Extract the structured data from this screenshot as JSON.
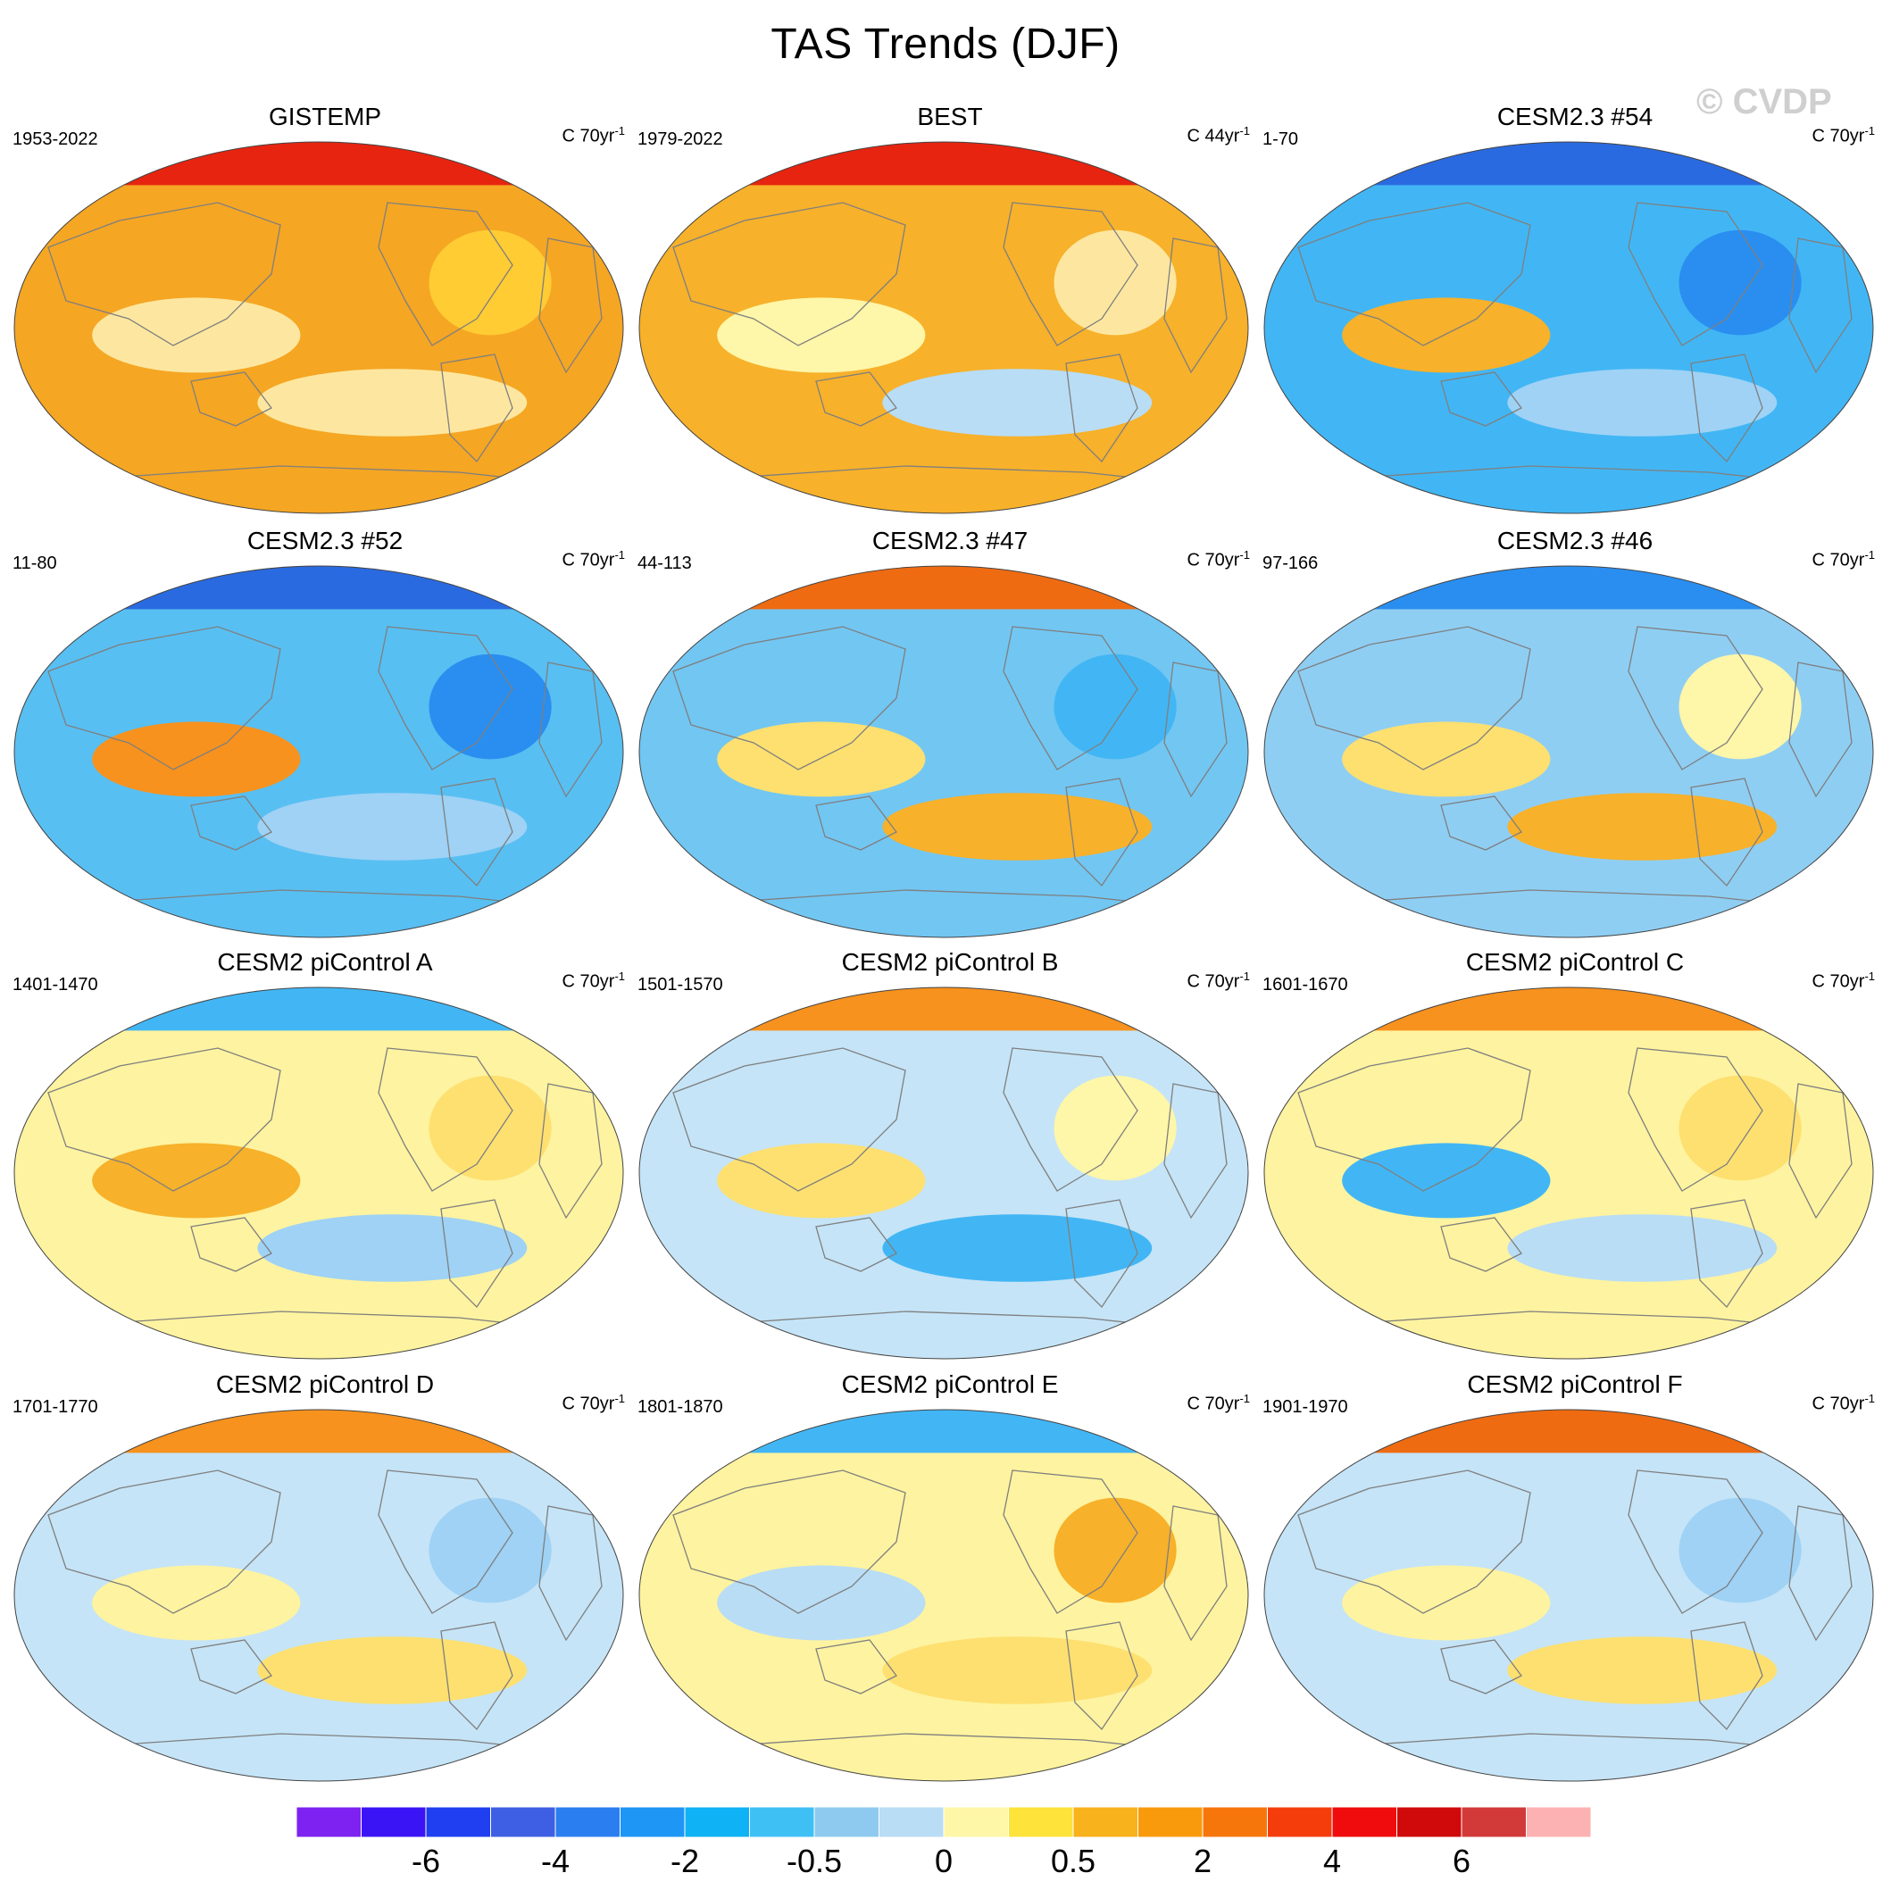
{
  "title": "TAS Trends (DJF)",
  "watermark": "© CVDP",
  "panels": [
    {
      "title": "GISTEMP",
      "period": "1953-2022",
      "units_prefix": "C 70yr",
      "units_exp": "-1",
      "base": "#f5a623",
      "north": "#e62410",
      "blobs": [
        {
          "c": "#fde7a0"
        },
        {
          "c": "#fde7a0"
        },
        {
          "c": "#ffcc33"
        }
      ]
    },
    {
      "title": "BEST",
      "period": "1979-2022",
      "units_prefix": "C 44yr",
      "units_exp": "-1",
      "base": "#f7b12a",
      "north": "#e62410",
      "blobs": [
        {
          "c": "#fef6a8"
        },
        {
          "c": "#b9ddf5"
        },
        {
          "c": "#fde7a0"
        }
      ]
    },
    {
      "title": "CESM2.3 #54",
      "period": "1-70",
      "units_prefix": "C 70yr",
      "units_exp": "-1",
      "base": "#42b6f4",
      "north": "#2a6ae0",
      "blobs": [
        {
          "c": "#f7b12a"
        },
        {
          "c": "#9fd2f5"
        },
        {
          "c": "#2a8ef0"
        }
      ]
    },
    {
      "title": "CESM2.3 #52",
      "period": "11-80",
      "units_prefix": "C 70yr",
      "units_exp": "-1",
      "base": "#58bff2",
      "north": "#2a6ae0",
      "blobs": [
        {
          "c": "#f7921e"
        },
        {
          "c": "#9fd2f5"
        },
        {
          "c": "#2a8ef0"
        }
      ]
    },
    {
      "title": "CESM2.3 #47",
      "period": "44-113",
      "units_prefix": "C 70yr",
      "units_exp": "-1",
      "base": "#72c6f2",
      "north": "#ef6b12",
      "blobs": [
        {
          "c": "#fde070"
        },
        {
          "c": "#f7b12a"
        },
        {
          "c": "#42b6f4"
        }
      ]
    },
    {
      "title": "CESM2.3 #46",
      "period": "97-166",
      "units_prefix": "C 70yr",
      "units_exp": "-1",
      "base": "#8fcef3",
      "north": "#2a8ef0",
      "blobs": [
        {
          "c": "#fde070"
        },
        {
          "c": "#f7b12a"
        },
        {
          "c": "#fef6a8"
        }
      ]
    },
    {
      "title": "CESM2 piControl A",
      "period": "1401-1470",
      "units_prefix": "C 70yr",
      "units_exp": "-1",
      "base": "#fef3a0",
      "north": "#42b6f4",
      "blobs": [
        {
          "c": "#f7b12a"
        },
        {
          "c": "#9fd2f5"
        },
        {
          "c": "#fde070"
        }
      ]
    },
    {
      "title": "CESM2 piControl B",
      "period": "1501-1570",
      "units_prefix": "C 70yr",
      "units_exp": "-1",
      "base": "#c5e4f7",
      "north": "#f7921e",
      "blobs": [
        {
          "c": "#fde070"
        },
        {
          "c": "#42b6f4"
        },
        {
          "c": "#fef6a8"
        }
      ]
    },
    {
      "title": "CESM2 piControl C",
      "period": "1601-1670",
      "units_prefix": "C 70yr",
      "units_exp": "-1",
      "base": "#fef3a0",
      "north": "#f7921e",
      "blobs": [
        {
          "c": "#42b6f4"
        },
        {
          "c": "#b9ddf5"
        },
        {
          "c": "#fde070"
        }
      ]
    },
    {
      "title": "CESM2 piControl D",
      "period": "1701-1770",
      "units_prefix": "C 70yr",
      "units_exp": "-1",
      "base": "#c5e4f7",
      "north": "#f7921e",
      "blobs": [
        {
          "c": "#fef3a0"
        },
        {
          "c": "#fde070"
        },
        {
          "c": "#9fd2f5"
        }
      ]
    },
    {
      "title": "CESM2 piControl E",
      "period": "1801-1870",
      "units_prefix": "C 70yr",
      "units_exp": "-1",
      "base": "#fef3a0",
      "north": "#42b6f4",
      "blobs": [
        {
          "c": "#b9ddf5"
        },
        {
          "c": "#fde070"
        },
        {
          "c": "#f7b12a"
        }
      ]
    },
    {
      "title": "CESM2 piControl F",
      "period": "1901-1970",
      "units_prefix": "C 70yr",
      "units_exp": "-1",
      "base": "#c5e4f7",
      "north": "#ef6b12",
      "blobs": [
        {
          "c": "#fef3a0"
        },
        {
          "c": "#fde070"
        },
        {
          "c": "#9fd2f5"
        }
      ]
    }
  ],
  "colorbar": {
    "colors": [
      "#7d22f0",
      "#3b14f5",
      "#1f3ff0",
      "#3e5fe3",
      "#2b7ef0",
      "#1d96f6",
      "#0fb2f5",
      "#3ec0f5",
      "#8ecaef",
      "#b9ddf5",
      "#fff7a8",
      "#fde33a",
      "#f7b21c",
      "#f99a0c",
      "#f7760c",
      "#f53d0c",
      "#f00c0c",
      "#d00a0a",
      "#d23a3a",
      "#fcb2b2"
    ],
    "labels": [
      "-6",
      "-4",
      "-2",
      "-0.5",
      "0",
      "0.5",
      "2",
      "4",
      "6"
    ]
  }
}
